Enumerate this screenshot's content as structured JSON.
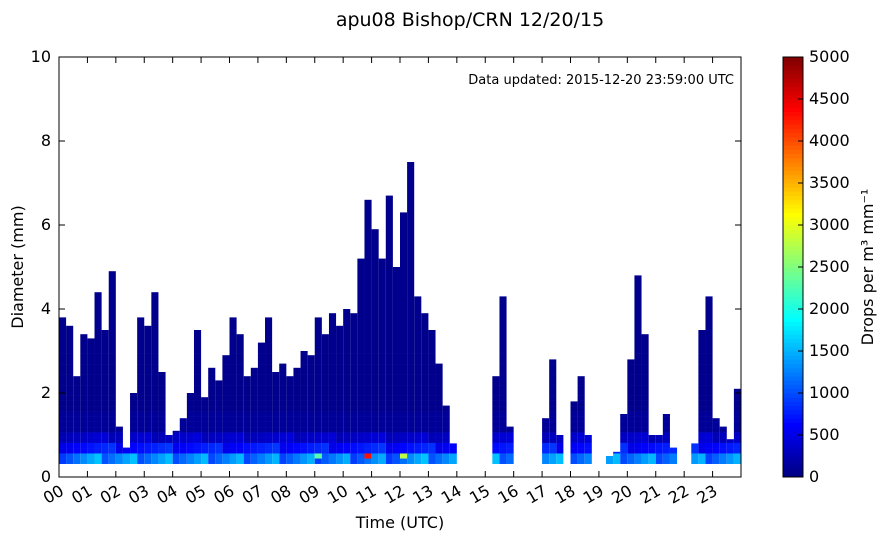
{
  "chart_data": {
    "type": "heatmap",
    "title": "apu08 Bishop/CRN 12/20/15",
    "xlabel": "Time (UTC)",
    "ylabel": "Diameter (mm)",
    "annotation": "Data updated:  2015-12-20 23:59:00 UTC",
    "xlim": [
      0,
      24
    ],
    "ylim": [
      0,
      10
    ],
    "x_ticks": [
      "00",
      "01",
      "02",
      "03",
      "04",
      "05",
      "06",
      "07",
      "08",
      "09",
      "10",
      "11",
      "12",
      "13",
      "14",
      "15",
      "16",
      "17",
      "18",
      "19",
      "20",
      "21",
      "22",
      "23"
    ],
    "y_ticks": [
      0,
      2,
      4,
      6,
      8,
      10
    ],
    "colorbar": {
      "label": "Drops per m³  mm⁻¹",
      "min": 0,
      "max": 5000,
      "ticks": [
        0,
        500,
        1000,
        1500,
        2000,
        2500,
        3000,
        3500,
        4000,
        4500,
        5000
      ],
      "colormap": "jet"
    },
    "bins_mm": [
      0.31,
      0.44,
      0.56,
      0.69,
      0.81,
      0.94,
      1.06,
      1.19,
      1.31,
      1.44,
      1.56,
      1.69,
      1.81,
      1.94,
      2.19,
      2.44,
      2.69,
      2.94,
      3.25,
      3.75,
      4.25,
      4.75,
      5.5,
      6.5,
      7.5
    ],
    "precip_max_diameter_mm": [
      {
        "hour": 0.0,
        "dmax": 3.8
      },
      {
        "hour": 0.25,
        "dmax": 3.6
      },
      {
        "hour": 0.5,
        "dmax": 2.4
      },
      {
        "hour": 0.75,
        "dmax": 3.4
      },
      {
        "hour": 1.0,
        "dmax": 3.3
      },
      {
        "hour": 1.25,
        "dmax": 4.4
      },
      {
        "hour": 1.5,
        "dmax": 3.5
      },
      {
        "hour": 1.75,
        "dmax": 4.9
      },
      {
        "hour": 2.0,
        "dmax": 1.2
      },
      {
        "hour": 2.25,
        "dmax": 0.7
      },
      {
        "hour": 2.5,
        "dmax": 2.0
      },
      {
        "hour": 2.75,
        "dmax": 3.8
      },
      {
        "hour": 3.0,
        "dmax": 3.6
      },
      {
        "hour": 3.25,
        "dmax": 4.4
      },
      {
        "hour": 3.5,
        "dmax": 2.5
      },
      {
        "hour": 3.75,
        "dmax": 1.0
      },
      {
        "hour": 4.0,
        "dmax": 1.1
      },
      {
        "hour": 4.25,
        "dmax": 1.4
      },
      {
        "hour": 4.5,
        "dmax": 2.0
      },
      {
        "hour": 4.75,
        "dmax": 3.5
      },
      {
        "hour": 5.0,
        "dmax": 1.9
      },
      {
        "hour": 5.25,
        "dmax": 2.6
      },
      {
        "hour": 5.5,
        "dmax": 2.3
      },
      {
        "hour": 5.75,
        "dmax": 2.9
      },
      {
        "hour": 6.0,
        "dmax": 3.8
      },
      {
        "hour": 6.25,
        "dmax": 3.4
      },
      {
        "hour": 6.5,
        "dmax": 2.4
      },
      {
        "hour": 6.75,
        "dmax": 2.6
      },
      {
        "hour": 7.0,
        "dmax": 3.2
      },
      {
        "hour": 7.25,
        "dmax": 3.8
      },
      {
        "hour": 7.5,
        "dmax": 2.5
      },
      {
        "hour": 7.75,
        "dmax": 2.7
      },
      {
        "hour": 8.0,
        "dmax": 2.4
      },
      {
        "hour": 8.25,
        "dmax": 2.6
      },
      {
        "hour": 8.5,
        "dmax": 3.0
      },
      {
        "hour": 8.75,
        "dmax": 2.9
      },
      {
        "hour": 9.0,
        "dmax": 3.8
      },
      {
        "hour": 9.25,
        "dmax": 3.4
      },
      {
        "hour": 9.5,
        "dmax": 3.9
      },
      {
        "hour": 9.75,
        "dmax": 3.6
      },
      {
        "hour": 10.0,
        "dmax": 4.0
      },
      {
        "hour": 10.25,
        "dmax": 3.9
      },
      {
        "hour": 10.5,
        "dmax": 5.2
      },
      {
        "hour": 10.75,
        "dmax": 6.6
      },
      {
        "hour": 11.0,
        "dmax": 5.9
      },
      {
        "hour": 11.25,
        "dmax": 5.2
      },
      {
        "hour": 11.5,
        "dmax": 6.7
      },
      {
        "hour": 11.75,
        "dmax": 5.0
      },
      {
        "hour": 12.0,
        "dmax": 6.3
      },
      {
        "hour": 12.25,
        "dmax": 7.7
      },
      {
        "hour": 12.5,
        "dmax": 4.3
      },
      {
        "hour": 12.75,
        "dmax": 3.9
      },
      {
        "hour": 13.0,
        "dmax": 3.5
      },
      {
        "hour": 13.25,
        "dmax": 2.7
      },
      {
        "hour": 13.5,
        "dmax": 1.7
      },
      {
        "hour": 13.75,
        "dmax": 0.8
      },
      {
        "hour": 15.25,
        "dmax": 2.4
      },
      {
        "hour": 15.5,
        "dmax": 4.3
      },
      {
        "hour": 15.75,
        "dmax": 1.2
      },
      {
        "hour": 17.0,
        "dmax": 1.4
      },
      {
        "hour": 17.25,
        "dmax": 2.8
      },
      {
        "hour": 17.5,
        "dmax": 1.0
      },
      {
        "hour": 18.0,
        "dmax": 1.8
      },
      {
        "hour": 18.25,
        "dmax": 2.4
      },
      {
        "hour": 18.5,
        "dmax": 1.0
      },
      {
        "hour": 19.25,
        "dmax": 0.5
      },
      {
        "hour": 19.5,
        "dmax": 0.6
      },
      {
        "hour": 19.75,
        "dmax": 1.5
      },
      {
        "hour": 20.0,
        "dmax": 2.8
      },
      {
        "hour": 20.25,
        "dmax": 4.8
      },
      {
        "hour": 20.5,
        "dmax": 3.4
      },
      {
        "hour": 20.75,
        "dmax": 1.0
      },
      {
        "hour": 21.0,
        "dmax": 1.0
      },
      {
        "hour": 21.25,
        "dmax": 1.5
      },
      {
        "hour": 21.5,
        "dmax": 0.7
      },
      {
        "hour": 22.25,
        "dmax": 0.8
      },
      {
        "hour": 22.5,
        "dmax": 3.5
      },
      {
        "hour": 22.75,
        "dmax": 4.3
      },
      {
        "hour": 23.0,
        "dmax": 1.4
      },
      {
        "hour": 23.25,
        "dmax": 1.2
      },
      {
        "hour": 23.5,
        "dmax": 0.9
      },
      {
        "hour": 23.75,
        "dmax": 2.1
      }
    ],
    "peak_concentration": [
      {
        "hour": 10.75,
        "diameter_mm": 0.44,
        "value": 4300
      },
      {
        "hour": 12.0,
        "diameter_mm": 0.44,
        "value": 2800
      },
      {
        "hour": 9.0,
        "diameter_mm": 0.44,
        "value": 2300
      }
    ]
  }
}
